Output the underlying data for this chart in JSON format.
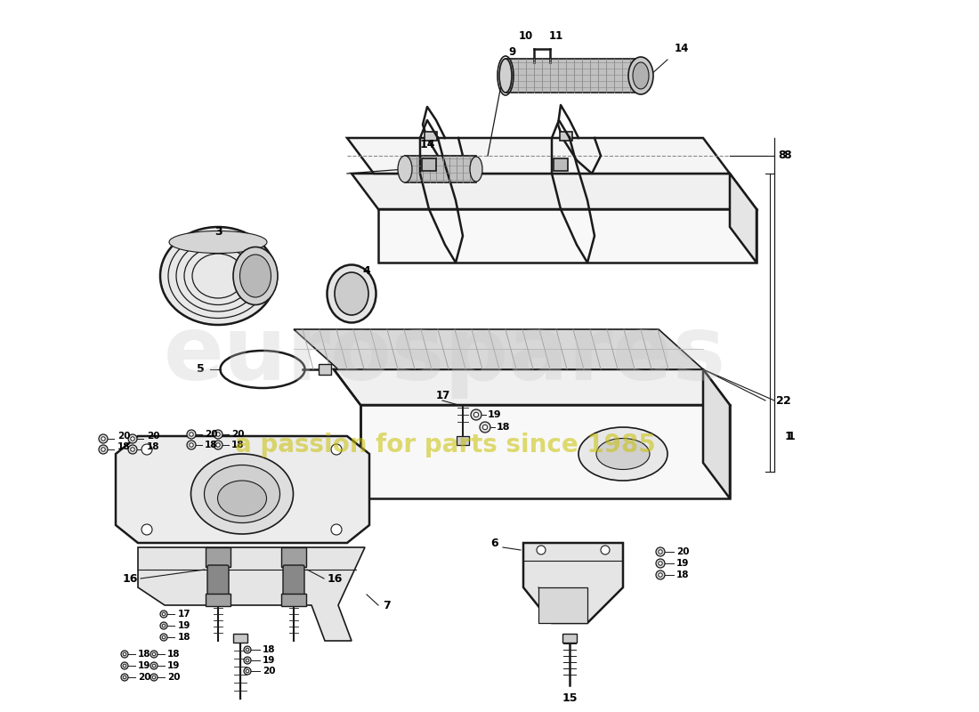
{
  "bg_color": "#ffffff",
  "line_color": "#1a1a1a",
  "watermark1": "eurospares",
  "watermark2": "a passion for parts since 1985",
  "fig_width": 11.0,
  "fig_height": 8.0,
  "dpi": 100,
  "xlim": [
    0,
    1100
  ],
  "ylim": [
    800,
    0
  ]
}
